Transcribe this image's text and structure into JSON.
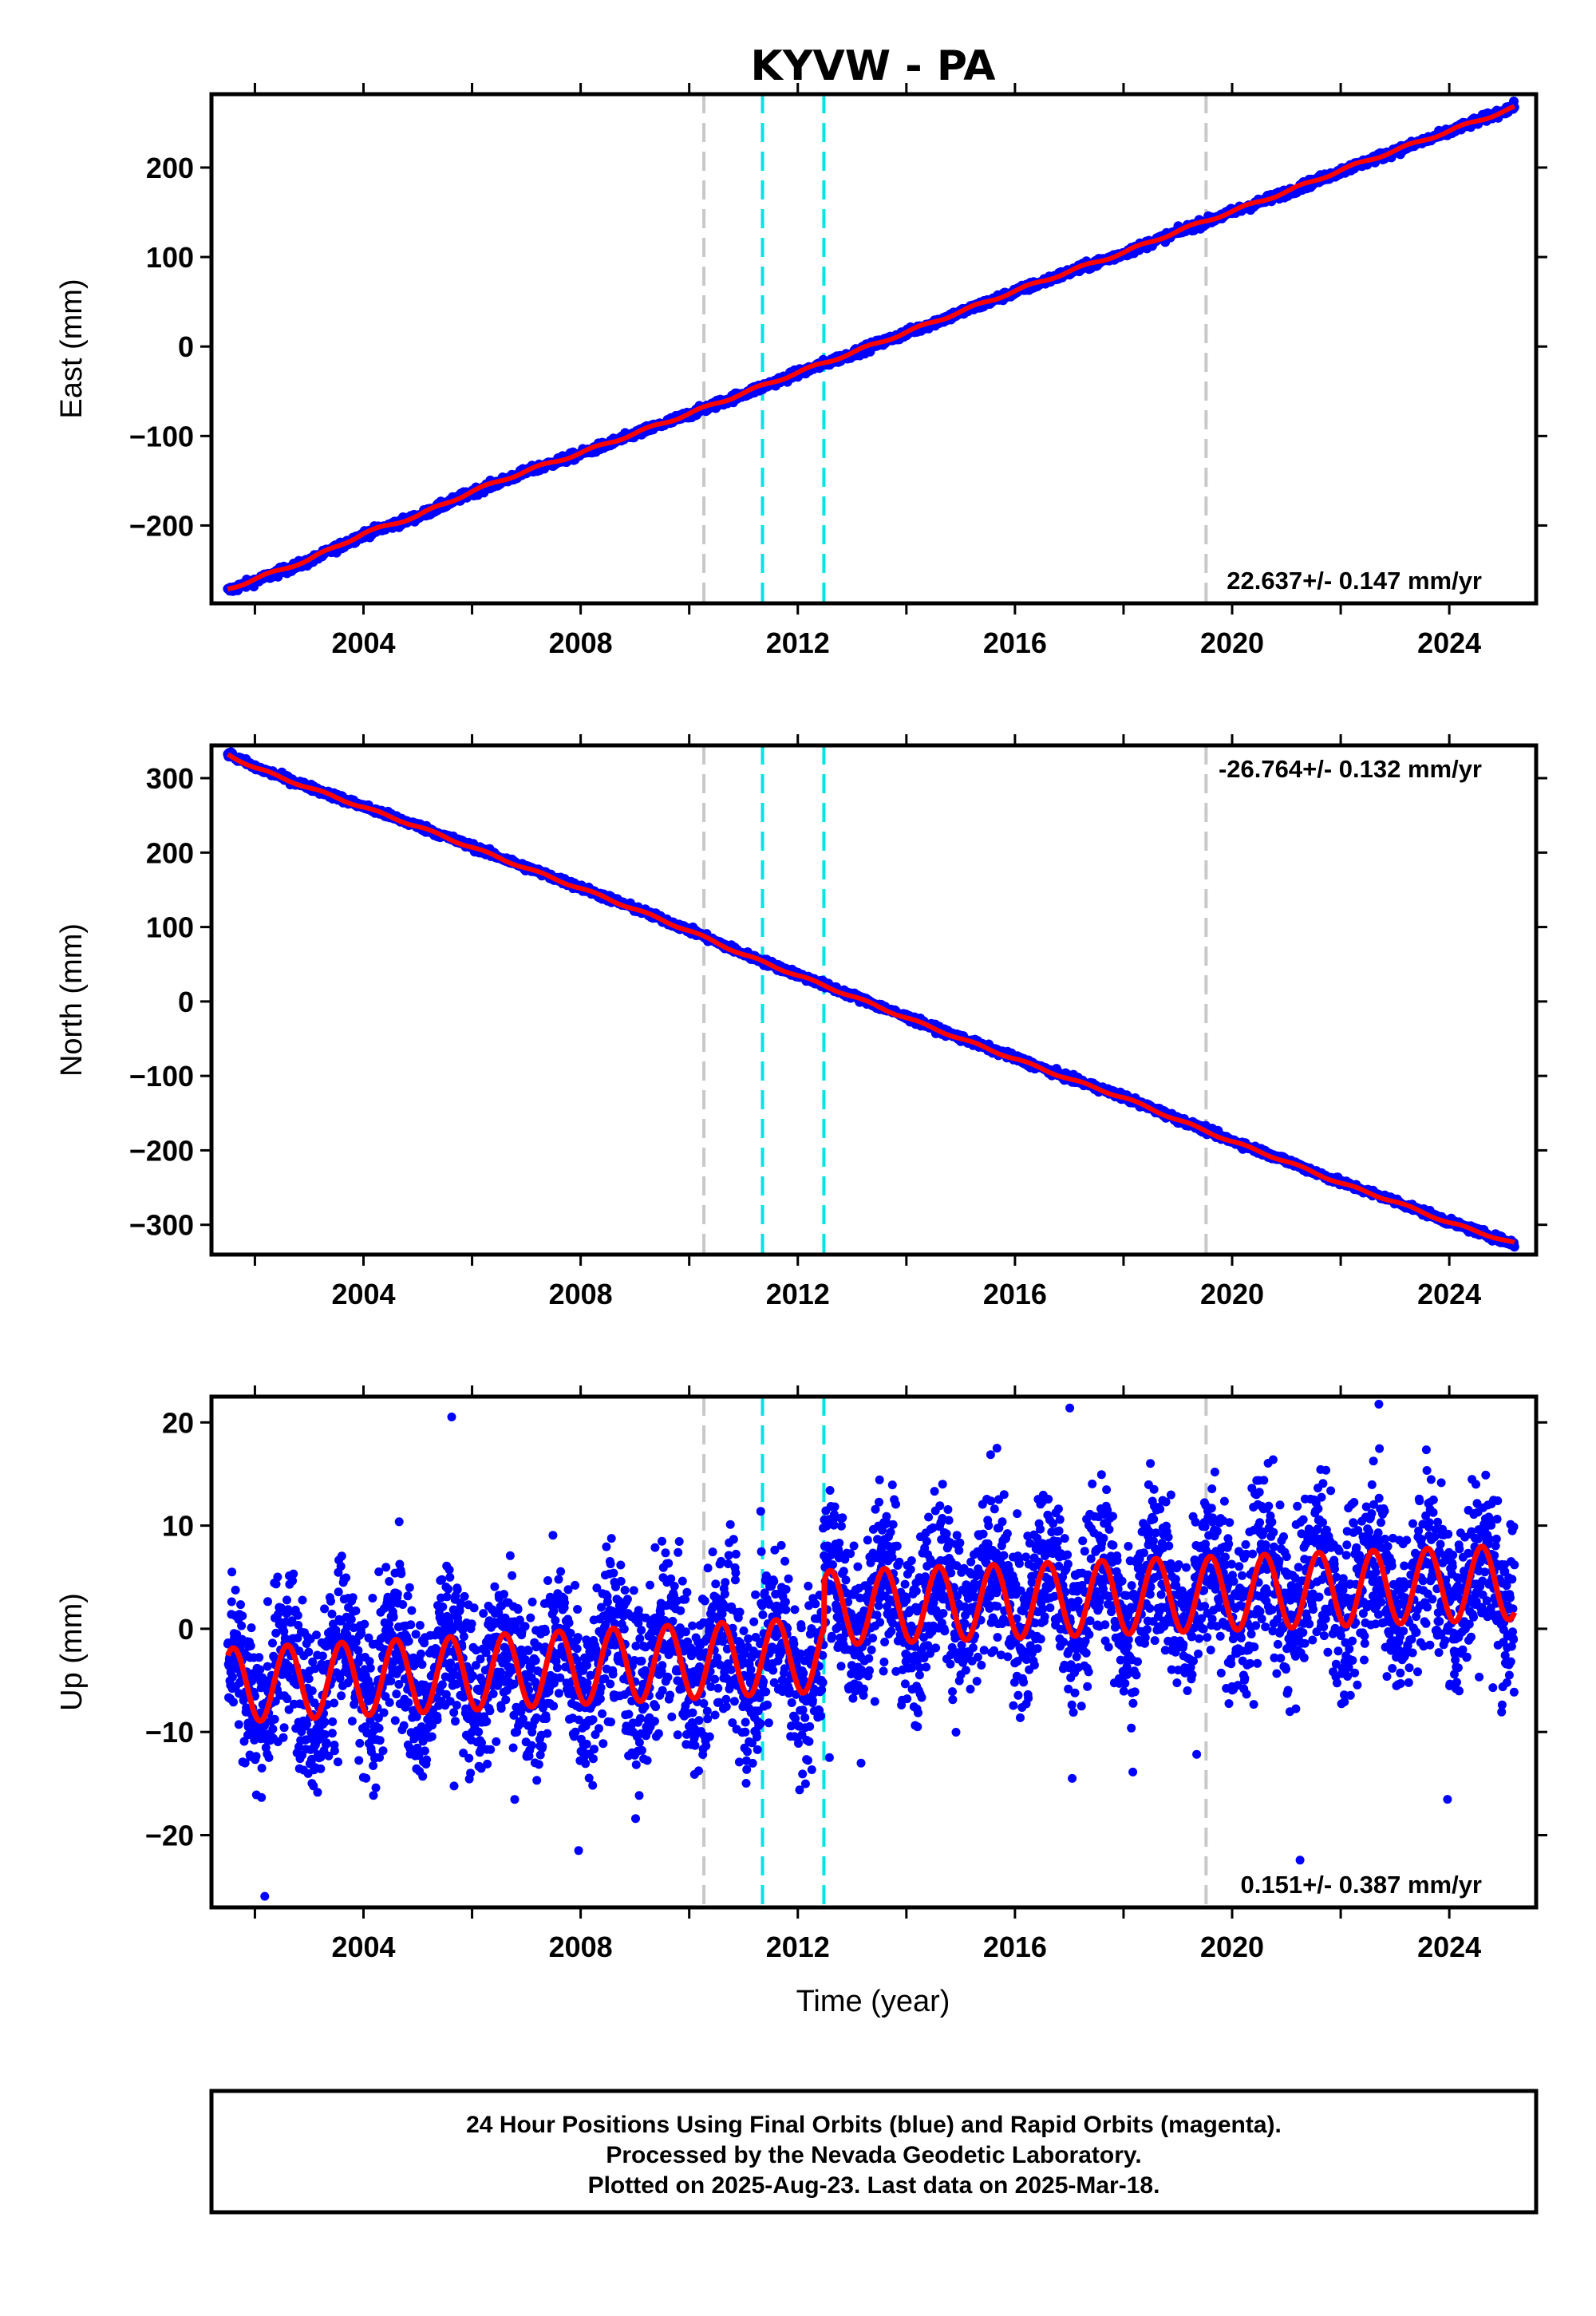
{
  "chart_data": {
    "type": "scatter",
    "title": "KYVW - PA",
    "xlabel": "Time (year)",
    "xlim": [
      2001.2,
      2025.6
    ],
    "xticks": [
      2004,
      2008,
      2012,
      2016,
      2020,
      2024
    ],
    "xtick_labels": [
      "2004",
      "2008",
      "2012",
      "2016",
      "2020",
      "2024"
    ],
    "xminor_step": 2,
    "vlines": [
      {
        "x": 2010.27,
        "color": "#c8c8c8"
      },
      {
        "x": 2011.35,
        "color": "#00e5e5"
      },
      {
        "x": 2012.48,
        "color": "#00e5e5"
      },
      {
        "x": 2019.52,
        "color": "#c8c8c8"
      }
    ],
    "colors": {
      "observed": "#0000ff",
      "model": "#ff0000"
    },
    "panels": [
      {
        "id": "east",
        "ylabel": "East (mm)",
        "ylim": [
          -287,
          282
        ],
        "yticks": [
          -200,
          -100,
          0,
          100,
          200
        ],
        "ytick_labels": [
          "−200",
          "−100",
          "0",
          "100",
          "200"
        ],
        "rate_text": "22.637+/- 0.147 mm/yr",
        "rate_position": "bottom-right",
        "series": [
          {
            "type": "scatter",
            "x": [
              2001.5,
              2002,
              2003,
              2004,
              2005,
              2006,
              2007,
              2008,
              2009,
              2010,
              2011,
              2012,
              2013,
              2014,
              2015,
              2016,
              2017,
              2018,
              2019,
              2020,
              2021,
              2022,
              2023,
              2024,
              2025.2
            ],
            "y": [
              -273,
              -262,
              -240,
              -210,
              -190,
              -163,
              -140,
              -120,
              -98,
              -76,
              -53,
              -30,
              -8,
              15,
              38,
              61,
              83,
              104,
              128,
              150,
              172,
              196,
              218,
              240,
              268
            ]
          },
          {
            "type": "line",
            "x": [
              2001.5,
              2002,
              2003,
              2004,
              2005,
              2006,
              2007,
              2008,
              2009,
              2010,
              2011,
              2012,
              2013,
              2014,
              2015,
              2016,
              2017,
              2018,
              2019,
              2020,
              2021,
              2022,
              2023,
              2024,
              2025.2
            ],
            "y": [
              -271,
              -260,
              -238,
              -209,
              -189,
              -162,
              -139,
              -119,
              -97,
              -75,
              -52,
              -29,
              -7,
              16,
              39,
              62,
              84,
              105,
              129,
              151,
              173,
              197,
              219,
              241,
              267
            ]
          }
        ]
      },
      {
        "id": "north",
        "ylabel": "North (mm)",
        "ylim": [
          -340,
          344
        ],
        "yticks": [
          -300,
          -200,
          -100,
          0,
          100,
          200,
          300
        ],
        "ytick_labels": [
          "−300",
          "−200",
          "−100",
          "0",
          "100",
          "200",
          "300"
        ],
        "rate_text": "-26.764+/- 0.132 mm/yr",
        "rate_position": "top-right",
        "series": [
          {
            "type": "scatter",
            "x": [
              2001.5,
              2002,
              2003,
              2004,
              2005,
              2006,
              2007,
              2008,
              2009,
              2010,
              2011,
              2012,
              2013,
              2014,
              2015,
              2016,
              2017,
              2018,
              2019,
              2020,
              2021,
              2022,
              2023,
              2024,
              2025.2
            ],
            "y": [
              333,
              315,
              288,
              262,
              236,
              208,
              180,
              153,
              125,
              96,
              64,
              36,
              8,
              -21,
              -49,
              -76,
              -103,
              -128,
              -158,
              -187,
              -214,
              -243,
              -268,
              -296,
              -326
            ]
          },
          {
            "type": "line",
            "x": [
              2001.5,
              2002,
              2003,
              2004,
              2005,
              2006,
              2007,
              2008,
              2009,
              2010,
              2011,
              2012,
              2013,
              2014,
              2015,
              2016,
              2017,
              2018,
              2019,
              2020,
              2021,
              2022,
              2023,
              2024,
              2025.2
            ],
            "y": [
              332,
              314,
              287,
              261,
              235,
              207,
              179,
              152,
              124,
              95,
              63,
              35,
              7,
              -22,
              -50,
              -77,
              -104,
              -129,
              -159,
              -188,
              -215,
              -244,
              -269,
              -297,
              -325
            ]
          }
        ]
      },
      {
        "id": "up",
        "ylabel": "Up (mm)",
        "ylim": [
          -27,
          22.5
        ],
        "yticks": [
          -20,
          -10,
          0,
          10,
          20
        ],
        "ytick_labels": [
          "−20",
          "−10",
          "0",
          "10",
          "20"
        ],
        "rate_text": "0.151+/- 0.387 mm/yr",
        "rate_position": "bottom-right",
        "series": [
          {
            "type": "scatter-cloud",
            "x_start": 2001.5,
            "x_end": 2025.2,
            "mean_breaks": [
              [
                2001.5,
                -5.0
              ],
              [
                2012.48,
                -2.5
              ],
              [
                2012.49,
                2.5
              ],
              [
                2025.2,
                4.5
              ]
            ],
            "seasonal_amplitude": 3.5,
            "spread": 4.0
          },
          {
            "type": "line-seasonal",
            "x_start": 2001.5,
            "x_end": 2025.2,
            "mean_breaks": [
              [
                2001.5,
                -5.5
              ],
              [
                2012.48,
                -2.5
              ],
              [
                2012.49,
                2.0
              ],
              [
                2025.2,
                4.5
              ]
            ],
            "amplitude": 3.6
          }
        ]
      }
    ]
  },
  "footer": {
    "line1": "24 Hour Positions Using Final Orbits (blue) and Rapid Orbits (magenta).",
    "line2": "Processed by the Nevada Geodetic Laboratory.",
    "line3": "Plotted on 2025-Aug-23. Last data on 2025-Mar-18."
  }
}
